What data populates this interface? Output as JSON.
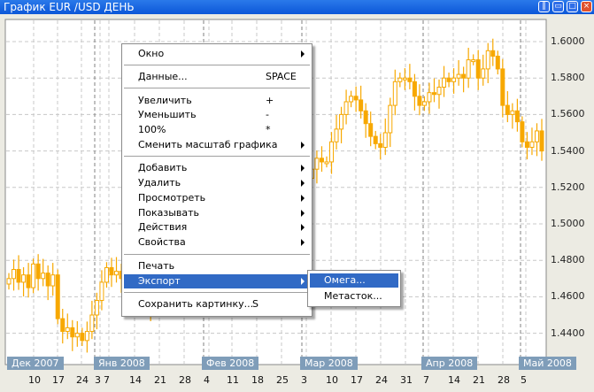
{
  "window": {
    "title": "График EUR /USD  ДЕНЬ",
    "controls": [
      "tile",
      "minimize",
      "maximize",
      "close"
    ]
  },
  "colors": {
    "candle": "#f7a800",
    "titlebar": "#0c57d8",
    "month_label_bg": "#7f9db9",
    "menu_highlight": "#316ac5"
  },
  "price_axis": [
    "1.6000",
    "1.5800",
    "1.5600",
    "1.5400",
    "1.5200",
    "1.5000",
    "1.4800",
    "1.4600",
    "1.4400"
  ],
  "months": [
    "Дек 2007",
    "Янв 2008",
    "Фев 2008",
    "Мар 2008",
    "Апр 2008",
    "Май 2008"
  ],
  "days": [
    "10",
    "17",
    "24",
    "3",
    "7",
    "14",
    "21",
    "28",
    "4",
    "11",
    "18",
    "25",
    "3",
    "10",
    "17",
    "24",
    "31",
    "7",
    "14",
    "21",
    "28",
    "5"
  ],
  "chart_data": {
    "type": "candlestick",
    "price_range": [
      1.425,
      1.612
    ],
    "grid": true,
    "closes": [
      1.47,
      1.475,
      1.468,
      1.472,
      1.465,
      1.478,
      1.47,
      1.473,
      1.466,
      1.472,
      1.448,
      1.441,
      1.443,
      1.438,
      1.44,
      1.436,
      1.441,
      1.45,
      1.458,
      1.468,
      1.476,
      1.472,
      1.474,
      1.47,
      1.468,
      1.472,
      1.466,
      1.462,
      1.458,
      1.452,
      1.46,
      1.468,
      1.472,
      1.476,
      1.47,
      1.466,
      1.468,
      1.472,
      1.478,
      1.482,
      1.476,
      1.47,
      1.462,
      1.458,
      1.455,
      1.462,
      1.47,
      1.478,
      1.482,
      1.486,
      1.48,
      1.476,
      1.484,
      1.49,
      1.494,
      1.498,
      1.5,
      1.505,
      1.51,
      1.518,
      1.522,
      1.525,
      1.53,
      1.536,
      1.534,
      1.534,
      1.545,
      1.552,
      1.56,
      1.567,
      1.57,
      1.568,
      1.562,
      1.555,
      1.548,
      1.544,
      1.542,
      1.55,
      1.565,
      1.578,
      1.58,
      1.58,
      1.578,
      1.57,
      1.565,
      1.567,
      1.572,
      1.571,
      1.575,
      1.58,
      1.578,
      1.58,
      1.582,
      1.58,
      1.59,
      1.59,
      1.58,
      1.585,
      1.595,
      1.592,
      1.585,
      1.565,
      1.56,
      1.562,
      1.556,
      1.545,
      1.542,
      1.545,
      1.551,
      1.54
    ]
  },
  "context_menu": {
    "items": [
      {
        "label": "Окно",
        "submenu": true
      },
      {
        "label": "Данные...",
        "shortcut": "SPACE"
      },
      {
        "label": "Увеличить",
        "shortcut": "+"
      },
      {
        "label": "Уменьшить",
        "shortcut": "-"
      },
      {
        "label": "100%",
        "shortcut": "*"
      },
      {
        "label": "Сменить масштаб графика",
        "submenu": true
      },
      {
        "label": "Добавить",
        "submenu": true
      },
      {
        "label": "Удалить",
        "submenu": true
      },
      {
        "label": "Просмотреть",
        "submenu": true
      },
      {
        "label": "Показывать",
        "submenu": true
      },
      {
        "label": "Действия",
        "submenu": true
      },
      {
        "label": "Свойства",
        "submenu": true
      },
      {
        "label": "Печать"
      },
      {
        "label": "Экспорт",
        "submenu": true,
        "highlighted": true
      },
      {
        "label": "Сохранить картинку...",
        "shortcut": "S"
      }
    ],
    "export_submenu": [
      {
        "label": "Омега...",
        "highlighted": true
      },
      {
        "label": "Метасток..."
      }
    ]
  }
}
